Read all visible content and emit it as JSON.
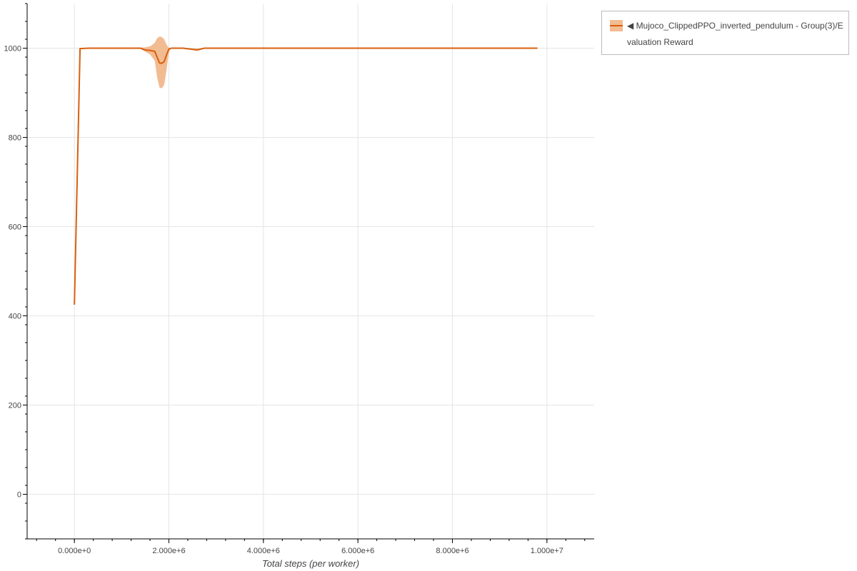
{
  "chart_data": {
    "type": "line",
    "title": "",
    "xlabel": "Total steps (per worker)",
    "ylabel": "",
    "xlim": [
      -1000000,
      11000000
    ],
    "ylim": [
      -100,
      1100
    ],
    "grid": true,
    "legend_placement": "outside-top-right",
    "xticks": [
      0,
      2000000,
      4000000,
      6000000,
      8000000,
      10000000
    ],
    "xtick_labels": [
      "0.000e+0",
      "2.000e+6",
      "4.000e+6",
      "6.000e+6",
      "8.000e+6",
      "1.000e+7"
    ],
    "yticks": [
      0,
      200,
      400,
      600,
      800,
      1000
    ],
    "ytick_labels": [
      "0",
      "200",
      "400",
      "600",
      "800",
      "1000"
    ],
    "series": [
      {
        "name": "Mujoco_ClippedPPO_inverted_pendulum - Group(3)/Evaluation Reward",
        "legend_label": "◀ Mujoco_ClippedPPO_inverted_pendulum - Group(3)/Evaluation Reward",
        "color": "#d95f0e",
        "band_color": "#f2bc92",
        "x": [
          0,
          120000,
          300000,
          600000,
          1000000,
          1400000,
          1500000,
          1600000,
          1700000,
          1750000,
          1800000,
          1850000,
          1900000,
          1950000,
          2000000,
          2050000,
          2300000,
          2600000,
          2750000,
          3000000,
          5000000,
          9800000
        ],
        "y": [
          425,
          999,
          1000,
          1000,
          1000,
          1000,
          996,
          995,
          993,
          980,
          967,
          966,
          970,
          985,
          998,
          1000,
          1000,
          996,
          1000,
          1000,
          1000,
          1000
        ],
        "upper": [
          425,
          1000,
          1000,
          1000,
          1000,
          1001,
          1002,
          1004,
          1012,
          1022,
          1026,
          1025,
          1020,
          1008,
          1001,
          1000,
          1000,
          999,
          1000,
          1000,
          1000,
          1000
        ],
        "lower": [
          425,
          998,
          999,
          1000,
          1000,
          998,
          992,
          986,
          972,
          935,
          912,
          910,
          918,
          950,
          992,
          1000,
          999,
          994,
          999,
          1000,
          1000,
          1000
        ]
      }
    ]
  }
}
